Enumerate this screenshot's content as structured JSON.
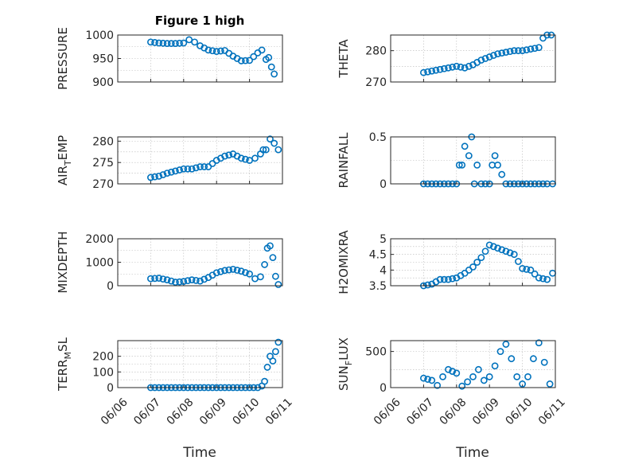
{
  "figure": {
    "title": "Figure 1 high",
    "xlabel": "Time",
    "marker_color": "#0072BD"
  },
  "chart_data": [
    {
      "type": "scatter",
      "ylabel": "PRESSURE",
      "ylabel_sub": "",
      "ylabel_tail": "",
      "xlim": [
        "06/07",
        "06/11"
      ],
      "ylim": [
        900,
        1000
      ],
      "yticks": [
        900,
        950,
        1000
      ],
      "xticks": [],
      "grid": true,
      "x": [
        "06/07 00:00",
        "06/07 06:00",
        "06/07 12:00",
        "06/07 18:00",
        "06/08 00:00",
        "06/08 04:00",
        "06/08 08:00",
        "06/08 12:00",
        "06/08 18:00",
        "06/09 00:00",
        "06/09 06:00",
        "06/09 12:00",
        "06/09 18:00",
        "06/10 00:00",
        "06/10 06:00",
        "06/10 09:00",
        "06/10 12:00",
        "06/10 14:00",
        "06/10 16:00",
        "06/10 18:00"
      ],
      "y": [
        985,
        983,
        982,
        982,
        983,
        990,
        985,
        977,
        968,
        965,
        967,
        955,
        945,
        946,
        962,
        968,
        948,
        952,
        932,
        917
      ]
    },
    {
      "type": "scatter",
      "ylabel": "THETA",
      "ylabel_sub": "",
      "ylabel_tail": "",
      "xlim": [
        "06/07",
        "06/11"
      ],
      "ylim": [
        270,
        285
      ],
      "yticks": [
        270,
        280
      ],
      "xticks": [],
      "grid": true,
      "x": [
        "06/07 00:00",
        "06/07 06:00",
        "06/07 12:00",
        "06/07 18:00",
        "06/08 00:00",
        "06/08 06:00",
        "06/08 12:00",
        "06/08 18:00",
        "06/09 00:00",
        "06/09 06:00",
        "06/09 12:00",
        "06/09 18:00",
        "06/10 00:00",
        "06/10 06:00",
        "06/10 12:00",
        "06/10 15:00",
        "06/10 18:00",
        "06/10 21:00"
      ],
      "y": [
        273,
        273.5,
        274,
        274.5,
        275,
        274.5,
        275.5,
        277,
        278,
        279,
        279.5,
        280,
        280,
        280.5,
        281,
        284,
        285,
        285
      ]
    },
    {
      "type": "scatter",
      "ylabel": "AIR",
      "ylabel_sub": "T",
      "ylabel_tail": "EMP",
      "xlim": [
        "06/07",
        "06/11"
      ],
      "ylim": [
        270,
        281
      ],
      "yticks": [
        270,
        275,
        280
      ],
      "xticks": [],
      "grid": true,
      "x": [
        "06/07 00:00",
        "06/07 06:00",
        "06/07 12:00",
        "06/07 18:00",
        "06/08 00:00",
        "06/08 06:00",
        "06/08 12:00",
        "06/08 18:00",
        "06/09 00:00",
        "06/09 06:00",
        "06/09 12:00",
        "06/09 18:00",
        "06/10 00:00",
        "06/10 04:00",
        "06/10 08:00",
        "06/10 10:00",
        "06/10 12:00",
        "06/10 15:00",
        "06/10 18:00",
        "06/10 21:00"
      ],
      "y": [
        271.5,
        271.8,
        272.5,
        273,
        273.5,
        273.5,
        274,
        274,
        275.5,
        276.5,
        277,
        276,
        275.5,
        276,
        277,
        278,
        278,
        280.5,
        279.5,
        278
      ]
    },
    {
      "type": "scatter",
      "ylabel": "RAINFALL",
      "ylabel_sub": "",
      "ylabel_tail": "",
      "xlim": [
        "06/07",
        "06/11"
      ],
      "ylim": [
        0,
        0.5
      ],
      "yticks": [
        0,
        0.5
      ],
      "xticks": [],
      "grid": true,
      "x": [
        "06/07 00:00",
        "06/07 06:00",
        "06/07 12:00",
        "06/07 18:00",
        "06/08 00:00",
        "06/08 02:00",
        "06/08 04:00",
        "06/08 06:00",
        "06/08 09:00",
        "06/08 11:00",
        "06/08 13:00",
        "06/08 15:00",
        "06/08 18:00",
        "06/09 00:00",
        "06/09 02:00",
        "06/09 04:00",
        "06/09 06:00",
        "06/09 12:00",
        "06/09 18:00",
        "06/10 00:00",
        "06/10 06:00",
        "06/10 12:00",
        "06/10 18:00",
        "06/10 22:00"
      ],
      "y": [
        0,
        0,
        0,
        0,
        0,
        0.2,
        0.2,
        0.4,
        0.3,
        0.5,
        0,
        0.2,
        0,
        0,
        0.2,
        0.3,
        0.2,
        0,
        0,
        0,
        0,
        0,
        0,
        0
      ]
    },
    {
      "type": "scatter",
      "ylabel": "MIXDEPTH",
      "ylabel_sub": "",
      "ylabel_tail": "",
      "xlim": [
        "06/07",
        "06/11"
      ],
      "ylim": [
        0,
        2000
      ],
      "yticks": [
        0,
        1000,
        2000
      ],
      "xticks": [],
      "grid": true,
      "x": [
        "06/07 00:00",
        "06/07 06:00",
        "06/07 12:00",
        "06/07 18:00",
        "06/08 00:00",
        "06/08 06:00",
        "06/08 12:00",
        "06/08 18:00",
        "06/09 00:00",
        "06/09 06:00",
        "06/09 12:00",
        "06/09 18:00",
        "06/10 00:00",
        "06/10 04:00",
        "06/10 08:00",
        "06/10 11:00",
        "06/10 13:00",
        "06/10 15:00",
        "06/10 17:00",
        "06/10 19:00",
        "06/10 21:00"
      ],
      "y": [
        300,
        320,
        250,
        150,
        180,
        250,
        200,
        350,
        550,
        650,
        700,
        620,
        500,
        300,
        380,
        900,
        1600,
        1700,
        1200,
        400,
        50
      ]
    },
    {
      "type": "scatter",
      "ylabel": "H2OMIXRA",
      "ylabel_sub": "",
      "ylabel_tail": "",
      "xlim": [
        "06/07",
        "06/11"
      ],
      "ylim": [
        3.5,
        5
      ],
      "yticks": [
        3.5,
        4,
        4.5,
        5
      ],
      "xticks": [],
      "grid": true,
      "x": [
        "06/07 00:00",
        "06/07 06:00",
        "06/07 12:00",
        "06/07 18:00",
        "06/08 00:00",
        "06/08 06:00",
        "06/08 12:00",
        "06/08 18:00",
        "06/09 00:00",
        "06/09 06:00",
        "06/09 12:00",
        "06/09 18:00",
        "06/10 00:00",
        "06/10 06:00",
        "06/10 12:00",
        "06/10 18:00",
        "06/10 22:00"
      ],
      "y": [
        3.5,
        3.55,
        3.7,
        3.7,
        3.75,
        3.9,
        4.1,
        4.4,
        4.8,
        4.7,
        4.6,
        4.5,
        4.05,
        4.0,
        3.75,
        3.7,
        3.9
      ]
    },
    {
      "type": "scatter",
      "ylabel": "TERR",
      "ylabel_sub": "M",
      "ylabel_tail": "SL",
      "xlim": [
        "06/06",
        "06/11"
      ],
      "ylim": [
        0,
        300
      ],
      "yticks": [
        0,
        100,
        200
      ],
      "xticks": [
        "06/06",
        "06/07",
        "06/08",
        "06/09",
        "06/10",
        "06/11"
      ],
      "grid": true,
      "x": [
        "06/07 00:00",
        "06/07 06:00",
        "06/07 12:00",
        "06/07 18:00",
        "06/08 00:00",
        "06/08 06:00",
        "06/08 12:00",
        "06/08 18:00",
        "06/09 00:00",
        "06/09 06:00",
        "06/09 12:00",
        "06/09 18:00",
        "06/10 00:00",
        "06/10 06:00",
        "06/10 09:00",
        "06/10 11:00",
        "06/10 13:00",
        "06/10 15:00",
        "06/10 17:00",
        "06/10 19:00",
        "06/10 21:00"
      ],
      "y": [
        0,
        0,
        0,
        0,
        0,
        0,
        0,
        0,
        0,
        0,
        0,
        0,
        0,
        0,
        10,
        40,
        130,
        200,
        170,
        230,
        290
      ]
    },
    {
      "type": "scatter",
      "ylabel": "SUN",
      "ylabel_sub": "F",
      "ylabel_tail": "LUX",
      "xlim": [
        "06/06",
        "06/11"
      ],
      "ylim": [
        0,
        650
      ],
      "yticks": [
        0,
        500
      ],
      "xticks": [
        "06/06",
        "06/07",
        "06/08",
        "06/09",
        "06/10",
        "06/11"
      ],
      "grid": true,
      "x": [
        "06/07 00:00",
        "06/07 06:00",
        "06/07 10:00",
        "06/07 14:00",
        "06/07 18:00",
        "06/08 00:00",
        "06/08 04:00",
        "06/08 08:00",
        "06/08 12:00",
        "06/08 16:00",
        "06/08 20:00",
        "06/09 00:00",
        "06/09 04:00",
        "06/09 08:00",
        "06/09 12:00",
        "06/09 16:00",
        "06/09 20:00",
        "06/10 00:00",
        "06/10 04:00",
        "06/10 08:00",
        "06/10 12:00",
        "06/10 16:00",
        "06/10 20:00"
      ],
      "y": [
        130,
        100,
        30,
        150,
        250,
        200,
        20,
        80,
        150,
        250,
        100,
        150,
        300,
        500,
        600,
        400,
        150,
        50,
        150,
        400,
        620,
        350,
        50
      ]
    }
  ]
}
